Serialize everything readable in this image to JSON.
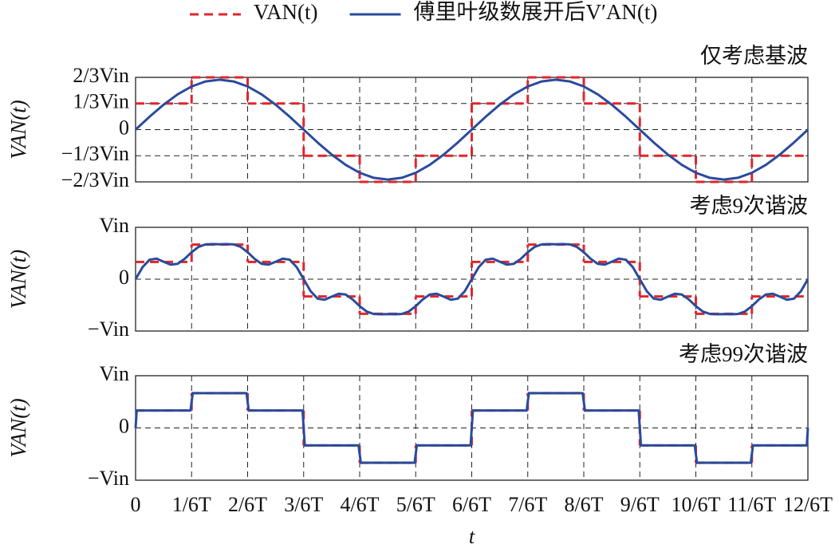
{
  "chart_data": [
    {
      "type": "line",
      "title": "仅考虑基波",
      "ylabel": "VAN(t)",
      "legend": "top",
      "grid": true,
      "xlim": [
        0,
        12
      ],
      "xticks": [
        0,
        1,
        2,
        3,
        4,
        5,
        6,
        7,
        8,
        9,
        10,
        11,
        12
      ],
      "ylim": [
        -0.6667,
        0.6667
      ],
      "yticks": [
        {
          "value": -0.6667,
          "label": "−2/3Vin"
        },
        {
          "value": -0.3333,
          "label": "−1/3Vin"
        },
        0,
        {
          "value": 0.3333,
          "label": "1/3Vin"
        },
        {
          "value": 0.6667,
          "label": "2/3Vin"
        }
      ],
      "series": [
        {
          "name": "VAN(t)",
          "color": "#e0262b",
          "linestyle": "dashed",
          "drawstyle": "steps-post",
          "x": [
            0,
            1,
            2,
            3,
            4,
            5,
            6,
            7,
            8,
            9,
            10,
            11
          ],
          "values": [
            0.3333,
            0.6667,
            0.3333,
            -0.3333,
            -0.6667,
            -0.3333,
            0.3333,
            0.6667,
            0.3333,
            -0.3333,
            -0.6667,
            -0.3333
          ]
        },
        {
          "name": "傅里叶级数展开后V′AN(t)",
          "color": "#2a4b9b",
          "linestyle": "solid",
          "x": [
            0,
            0.25,
            0.5,
            0.75,
            1,
            1.25,
            1.5,
            1.75,
            2,
            2.25,
            2.5,
            2.75,
            3,
            3.25,
            3.5,
            3.75,
            4,
            4.25,
            4.5,
            4.75,
            5,
            5.25,
            5.5,
            5.75,
            6,
            6.25,
            6.5,
            6.75,
            7,
            7.25,
            7.5,
            7.75,
            8,
            8.25,
            8.5,
            8.75,
            9,
            9.25,
            9.5,
            9.75,
            10,
            10.25,
            10.5,
            10.75,
            11,
            11.25,
            11.5,
            11.75,
            12
          ],
          "values": [
            0,
            0.165,
            0.318,
            0.45,
            0.551,
            0.615,
            0.637,
            0.615,
            0.551,
            0.45,
            0.318,
            0.165,
            0,
            -0.165,
            -0.318,
            -0.45,
            -0.551,
            -0.615,
            -0.637,
            -0.615,
            -0.551,
            -0.45,
            -0.318,
            -0.165,
            0,
            0.165,
            0.318,
            0.45,
            0.551,
            0.615,
            0.637,
            0.615,
            0.551,
            0.45,
            0.318,
            0.165,
            0,
            -0.165,
            -0.318,
            -0.45,
            -0.551,
            -0.615,
            -0.637,
            -0.615,
            -0.551,
            -0.45,
            -0.318,
            -0.165,
            0
          ]
        }
      ]
    },
    {
      "type": "line",
      "title": "考虑9次谐波",
      "ylabel": "VAN(t)",
      "grid": true,
      "xlim": [
        0,
        12
      ],
      "xticks": [
        0,
        1,
        2,
        3,
        4,
        5,
        6,
        7,
        8,
        9,
        10,
        11,
        12
      ],
      "ylim": [
        -1,
        1
      ],
      "yticks": [
        {
          "value": -1,
          "label": "−Vin"
        },
        0,
        {
          "value": 1,
          "label": "Vin"
        }
      ],
      "series": [
        {
          "color": "#e0262b",
          "linestyle": "dashed",
          "drawstyle": "steps-post",
          "x": [
            0,
            1,
            2,
            3,
            4,
            5,
            6,
            7,
            8,
            9,
            10,
            11
          ],
          "values": [
            0.3333,
            0.6667,
            0.3333,
            -0.3333,
            -0.6667,
            -0.3333,
            0.3333,
            0.6667,
            0.3333,
            -0.3333,
            -0.6667,
            -0.3333
          ]
        },
        {
          "color": "#2a4b9b",
          "linestyle": "solid",
          "x": [
            0,
            0.125,
            0.25,
            0.375,
            0.5,
            0.625,
            0.75,
            0.875,
            1,
            1.125,
            1.25,
            1.375,
            1.5,
            1.625,
            1.75,
            1.875,
            2,
            2.125,
            2.25,
            2.375,
            2.5,
            2.625,
            2.75,
            2.875,
            3,
            3.125,
            3.25,
            3.375,
            3.5,
            3.625,
            3.75,
            3.875,
            4,
            4.125,
            4.25,
            4.375,
            4.5,
            4.625,
            4.75,
            4.875,
            5,
            5.125,
            5.25,
            5.375,
            5.5,
            5.625,
            5.75,
            5.875,
            6,
            6.125,
            6.25,
            6.375,
            6.5,
            6.625,
            6.75,
            6.875,
            7,
            7.125,
            7.25,
            7.375,
            7.5,
            7.625,
            7.75,
            7.875,
            8,
            8.125,
            8.25,
            8.375,
            8.5,
            8.625,
            8.75,
            8.875,
            9,
            9.125,
            9.25,
            9.375,
            9.5,
            9.625,
            9.75,
            9.875,
            10,
            10.125,
            10.25,
            10.375,
            10.5,
            10.625,
            10.75,
            10.875,
            11,
            11.125,
            11.25,
            11.375,
            11.5,
            11.625,
            11.75,
            11.875,
            12
          ],
          "values": [
            0,
            0.233,
            0.376,
            0.396,
            0.337,
            0.281,
            0.296,
            0.391,
            0.52,
            0.624,
            0.671,
            0.677,
            0.673,
            0.677,
            0.671,
            0.624,
            0.52,
            0.391,
            0.296,
            0.281,
            0.337,
            0.396,
            0.376,
            0.233,
            0,
            -0.233,
            -0.376,
            -0.396,
            -0.337,
            -0.281,
            -0.296,
            -0.391,
            -0.52,
            -0.624,
            -0.671,
            -0.677,
            -0.673,
            -0.677,
            -0.671,
            -0.624,
            -0.52,
            -0.391,
            -0.296,
            -0.281,
            -0.337,
            -0.396,
            -0.376,
            -0.233,
            0,
            0.233,
            0.376,
            0.396,
            0.337,
            0.281,
            0.296,
            0.391,
            0.52,
            0.624,
            0.671,
            0.677,
            0.673,
            0.677,
            0.671,
            0.624,
            0.52,
            0.391,
            0.296,
            0.281,
            0.337,
            0.396,
            0.376,
            0.233,
            0,
            -0.233,
            -0.376,
            -0.396,
            -0.337,
            -0.281,
            -0.296,
            -0.391,
            -0.52,
            -0.624,
            -0.671,
            -0.677,
            -0.673,
            -0.677,
            -0.671,
            -0.624,
            -0.52,
            -0.391,
            -0.296,
            -0.281,
            -0.337,
            -0.396,
            -0.376,
            -0.233,
            0
          ]
        }
      ]
    },
    {
      "type": "line",
      "title": "考虑99次谐波",
      "ylabel": "VAN(t)",
      "xlabel": "t",
      "grid": true,
      "xlim": [
        0,
        12
      ],
      "xticks": [
        0,
        {
          "value": 1,
          "label": "1/6T"
        },
        {
          "value": 2,
          "label": "2/6T"
        },
        {
          "value": 3,
          "label": "3/6T"
        },
        {
          "value": 4,
          "label": "4/6T"
        },
        {
          "value": 5,
          "label": "5/6T"
        },
        {
          "value": 6,
          "label": "6/6T"
        },
        {
          "value": 7,
          "label": "7/6T"
        },
        {
          "value": 8,
          "label": "8/6T"
        },
        {
          "value": 9,
          "label": "9/6T"
        },
        {
          "value": 10,
          "label": "10/6T"
        },
        {
          "value": 11,
          "label": "11/6T"
        },
        {
          "value": 12,
          "label": "12/6T"
        }
      ],
      "ylim": [
        -1,
        1
      ],
      "yticks": [
        {
          "value": -1,
          "label": "−Vin"
        },
        0,
        {
          "value": 1,
          "label": "Vin"
        }
      ],
      "series": [
        {
          "color": "#e0262b",
          "linestyle": "dashed",
          "drawstyle": "steps-post",
          "x": [
            0,
            1,
            2,
            3,
            4,
            5,
            6,
            7,
            8,
            9,
            10,
            11
          ],
          "values": [
            0.3333,
            0.6667,
            0.3333,
            -0.3333,
            -0.6667,
            -0.3333,
            0.3333,
            0.6667,
            0.3333,
            -0.3333,
            -0.6667,
            -0.3333
          ]
        },
        {
          "color": "#2a4b9b",
          "linestyle": "solid",
          "x": [
            0,
            0.02,
            0.5,
            0.98,
            1,
            1.02,
            1.5,
            1.98,
            2,
            2.02,
            2.5,
            2.98,
            3,
            3.02,
            3.5,
            3.98,
            4,
            4.02,
            4.5,
            4.98,
            5,
            5.02,
            5.5,
            5.98,
            6,
            6.02,
            6.5,
            6.98,
            7,
            7.02,
            7.5,
            7.98,
            8,
            8.02,
            8.5,
            8.98,
            9,
            9.02,
            9.5,
            9.98,
            10,
            10.02,
            10.5,
            10.98,
            11,
            11.02,
            11.5,
            11.98,
            12
          ],
          "values": [
            0,
            0.3333,
            0.3333,
            0.3333,
            0.5,
            0.6667,
            0.6667,
            0.6667,
            0.5,
            0.3333,
            0.3333,
            0.3333,
            0,
            -0.3333,
            -0.3333,
            -0.3333,
            -0.5,
            -0.6667,
            -0.6667,
            -0.6667,
            -0.5,
            -0.3333,
            -0.3333,
            -0.3333,
            0,
            0.3333,
            0.3333,
            0.3333,
            0.5,
            0.6667,
            0.6667,
            0.6667,
            0.5,
            0.3333,
            0.3333,
            0.3333,
            0,
            -0.3333,
            -0.3333,
            -0.3333,
            -0.5,
            -0.6667,
            -0.6667,
            -0.6667,
            -0.5,
            -0.3333,
            -0.3333,
            -0.3333,
            0
          ]
        }
      ]
    }
  ]
}
